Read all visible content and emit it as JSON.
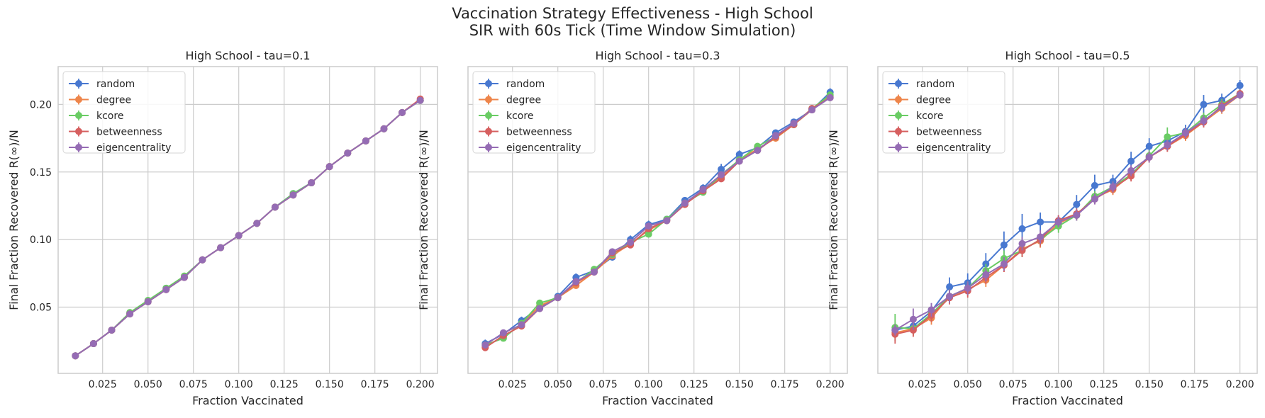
{
  "figure": {
    "title_line1": "Vaccination Strategy Effectiveness - High School",
    "title_line2": "SIR with 60s Tick (Time Window Simulation)"
  },
  "colors": {
    "random": "#4878d0",
    "degree": "#ee854a",
    "kcore": "#6acc64",
    "betweenness": "#d65f5f",
    "eigencentrality": "#956cb4"
  },
  "chart_data": [
    {
      "type": "line",
      "title": "High School - tau=0.1",
      "xlabel": "Fraction Vaccinated",
      "ylabel": "Final Fraction Recovered R(∞)/N",
      "xlim": [
        0.0005,
        0.2095
      ],
      "ylim": [
        0.001,
        0.228
      ],
      "xticks": [
        "0.025",
        "0.050",
        "0.075",
        "0.100",
        "0.125",
        "0.150",
        "0.175",
        "0.200"
      ],
      "yticks": [
        "0.05",
        "0.10",
        "0.15",
        "0.20"
      ],
      "grid": true,
      "legend_position": "upper-left",
      "x": [
        0.01,
        0.02,
        0.03,
        0.04,
        0.05,
        0.06,
        0.07,
        0.08,
        0.09,
        0.1,
        0.11,
        0.12,
        0.13,
        0.14,
        0.15,
        0.16,
        0.17,
        0.18,
        0.19,
        0.2
      ],
      "series": [
        {
          "name": "random",
          "values": [
            0.014,
            0.023,
            0.033,
            0.045,
            0.054,
            0.064,
            0.072,
            0.085,
            0.094,
            0.103,
            0.112,
            0.124,
            0.134,
            0.142,
            0.154,
            0.164,
            0.173,
            0.182,
            0.194,
            0.203
          ],
          "err": [
            0.001,
            0.001,
            0.001,
            0.001,
            0.001,
            0.001,
            0.001,
            0.001,
            0.001,
            0.001,
            0.001,
            0.001,
            0.001,
            0.001,
            0.001,
            0.001,
            0.001,
            0.001,
            0.001,
            0.001
          ]
        },
        {
          "name": "degree",
          "values": [
            0.014,
            0.023,
            0.033,
            0.045,
            0.054,
            0.063,
            0.072,
            0.085,
            0.094,
            0.103,
            0.112,
            0.124,
            0.133,
            0.142,
            0.154,
            0.164,
            0.173,
            0.182,
            0.194,
            0.203
          ],
          "err": [
            0.001,
            0.001,
            0.001,
            0.001,
            0.001,
            0.001,
            0.001,
            0.001,
            0.001,
            0.001,
            0.001,
            0.001,
            0.001,
            0.001,
            0.001,
            0.001,
            0.001,
            0.001,
            0.001,
            0.001
          ]
        },
        {
          "name": "kcore",
          "values": [
            0.014,
            0.023,
            0.033,
            0.046,
            0.055,
            0.064,
            0.073,
            0.085,
            0.094,
            0.103,
            0.112,
            0.124,
            0.134,
            0.142,
            0.154,
            0.164,
            0.173,
            0.182,
            0.194,
            0.203
          ],
          "err": [
            0.001,
            0.001,
            0.001,
            0.001,
            0.001,
            0.001,
            0.001,
            0.001,
            0.001,
            0.001,
            0.001,
            0.001,
            0.001,
            0.001,
            0.001,
            0.001,
            0.001,
            0.001,
            0.001,
            0.001
          ]
        },
        {
          "name": "betweenness",
          "values": [
            0.014,
            0.023,
            0.033,
            0.045,
            0.054,
            0.063,
            0.072,
            0.085,
            0.094,
            0.103,
            0.112,
            0.124,
            0.133,
            0.142,
            0.154,
            0.164,
            0.173,
            0.182,
            0.194,
            0.204
          ],
          "err": [
            0.001,
            0.001,
            0.001,
            0.001,
            0.001,
            0.001,
            0.001,
            0.001,
            0.001,
            0.001,
            0.001,
            0.001,
            0.001,
            0.001,
            0.001,
            0.001,
            0.001,
            0.001,
            0.001,
            0.001
          ]
        },
        {
          "name": "eigencentrality",
          "values": [
            0.014,
            0.023,
            0.033,
            0.045,
            0.054,
            0.063,
            0.072,
            0.085,
            0.094,
            0.103,
            0.112,
            0.124,
            0.133,
            0.142,
            0.154,
            0.164,
            0.173,
            0.182,
            0.194,
            0.203
          ],
          "err": [
            0.001,
            0.001,
            0.001,
            0.001,
            0.001,
            0.001,
            0.001,
            0.001,
            0.001,
            0.001,
            0.001,
            0.001,
            0.001,
            0.001,
            0.001,
            0.001,
            0.001,
            0.001,
            0.001,
            0.001
          ]
        }
      ]
    },
    {
      "type": "line",
      "title": "High School - tau=0.3",
      "xlabel": "Fraction Vaccinated",
      "ylabel": "Final Fraction Recovered R(∞)/N",
      "xlim": [
        0.0005,
        0.2095
      ],
      "ylim": [
        0.001,
        0.228
      ],
      "xticks": [
        "0.025",
        "0.050",
        "0.075",
        "0.100",
        "0.125",
        "0.150",
        "0.175",
        "0.200"
      ],
      "yticks": [],
      "grid": true,
      "legend_position": "upper-left",
      "x": [
        0.01,
        0.02,
        0.03,
        0.04,
        0.05,
        0.06,
        0.07,
        0.08,
        0.09,
        0.1,
        0.11,
        0.12,
        0.13,
        0.14,
        0.15,
        0.16,
        0.17,
        0.18,
        0.19,
        0.2
      ],
      "series": [
        {
          "name": "random",
          "values": [
            0.023,
            0.03,
            0.04,
            0.05,
            0.058,
            0.072,
            0.077,
            0.087,
            0.1,
            0.111,
            0.115,
            0.129,
            0.138,
            0.152,
            0.163,
            0.168,
            0.179,
            0.187,
            0.196,
            0.209
          ],
          "err": [
            0.003,
            0.003,
            0.003,
            0.002,
            0.002,
            0.003,
            0.002,
            0.002,
            0.003,
            0.003,
            0.002,
            0.002,
            0.003,
            0.004,
            0.003,
            0.002,
            0.002,
            0.002,
            0.002,
            0.003
          ]
        },
        {
          "name": "degree",
          "values": [
            0.021,
            0.028,
            0.037,
            0.051,
            0.057,
            0.066,
            0.076,
            0.088,
            0.097,
            0.107,
            0.114,
            0.126,
            0.137,
            0.146,
            0.159,
            0.167,
            0.175,
            0.185,
            0.196,
            0.206
          ],
          "err": [
            0.002,
            0.002,
            0.002,
            0.002,
            0.001,
            0.002,
            0.001,
            0.002,
            0.002,
            0.002,
            0.001,
            0.002,
            0.002,
            0.002,
            0.002,
            0.001,
            0.002,
            0.002,
            0.002,
            0.002
          ]
        },
        {
          "name": "kcore",
          "values": [
            0.022,
            0.027,
            0.038,
            0.053,
            0.057,
            0.068,
            0.078,
            0.089,
            0.098,
            0.104,
            0.115,
            0.127,
            0.135,
            0.148,
            0.159,
            0.169,
            0.176,
            0.185,
            0.197,
            0.207
          ],
          "err": [
            0.002,
            0.002,
            0.002,
            0.002,
            0.001,
            0.002,
            0.001,
            0.002,
            0.002,
            0.002,
            0.001,
            0.002,
            0.002,
            0.002,
            0.002,
            0.001,
            0.002,
            0.002,
            0.002,
            0.002
          ]
        },
        {
          "name": "betweenness",
          "values": [
            0.02,
            0.029,
            0.036,
            0.049,
            0.057,
            0.068,
            0.076,
            0.09,
            0.096,
            0.108,
            0.114,
            0.126,
            0.136,
            0.145,
            0.158,
            0.166,
            0.176,
            0.185,
            0.197,
            0.205
          ],
          "err": [
            0.002,
            0.002,
            0.002,
            0.002,
            0.001,
            0.002,
            0.001,
            0.002,
            0.002,
            0.002,
            0.001,
            0.002,
            0.002,
            0.002,
            0.002,
            0.001,
            0.002,
            0.002,
            0.002,
            0.002
          ]
        },
        {
          "name": "eigencentrality",
          "values": [
            0.022,
            0.031,
            0.037,
            0.049,
            0.057,
            0.069,
            0.076,
            0.091,
            0.098,
            0.11,
            0.114,
            0.127,
            0.137,
            0.148,
            0.158,
            0.166,
            0.177,
            0.186,
            0.196,
            0.205
          ],
          "err": [
            0.002,
            0.002,
            0.002,
            0.002,
            0.001,
            0.002,
            0.001,
            0.002,
            0.002,
            0.002,
            0.001,
            0.002,
            0.002,
            0.002,
            0.002,
            0.001,
            0.002,
            0.002,
            0.002,
            0.002
          ]
        }
      ]
    },
    {
      "type": "line",
      "title": "High School - tau=0.5",
      "xlabel": "Fraction Vaccinated",
      "ylabel": "Final Fraction Recovered R(∞)/N",
      "xlim": [
        0.0005,
        0.2095
      ],
      "ylim": [
        0.001,
        0.228
      ],
      "xticks": [
        "0.025",
        "0.050",
        "0.075",
        "0.100",
        "0.125",
        "0.150",
        "0.175",
        "0.200"
      ],
      "yticks": [],
      "grid": true,
      "legend_position": "upper-left",
      "x": [
        0.01,
        0.02,
        0.03,
        0.04,
        0.05,
        0.06,
        0.07,
        0.08,
        0.09,
        0.1,
        0.11,
        0.12,
        0.13,
        0.14,
        0.15,
        0.16,
        0.17,
        0.18,
        0.19,
        0.2
      ],
      "series": [
        {
          "name": "random",
          "values": [
            0.033,
            0.036,
            0.047,
            0.065,
            0.068,
            0.082,
            0.096,
            0.108,
            0.113,
            0.113,
            0.126,
            0.14,
            0.143,
            0.158,
            0.169,
            0.173,
            0.18,
            0.2,
            0.203,
            0.214
          ],
          "err": [
            0.005,
            0.006,
            0.006,
            0.007,
            0.007,
            0.008,
            0.01,
            0.011,
            0.007,
            0.005,
            0.007,
            0.008,
            0.005,
            0.007,
            0.006,
            0.005,
            0.005,
            0.007,
            0.005,
            0.004
          ]
        },
        {
          "name": "degree",
          "values": [
            0.031,
            0.034,
            0.042,
            0.058,
            0.063,
            0.07,
            0.081,
            0.093,
            0.099,
            0.112,
            0.118,
            0.131,
            0.137,
            0.148,
            0.161,
            0.169,
            0.177,
            0.187,
            0.197,
            0.207
          ],
          "err": [
            0.004,
            0.005,
            0.005,
            0.005,
            0.005,
            0.005,
            0.005,
            0.005,
            0.005,
            0.004,
            0.004,
            0.004,
            0.004,
            0.004,
            0.004,
            0.004,
            0.004,
            0.004,
            0.004,
            0.003
          ]
        },
        {
          "name": "kcore",
          "values": [
            0.035,
            0.034,
            0.045,
            0.058,
            0.064,
            0.077,
            0.086,
            0.092,
            0.1,
            0.11,
            0.118,
            0.132,
            0.139,
            0.148,
            0.162,
            0.176,
            0.179,
            0.19,
            0.2,
            0.208
          ],
          "err": [
            0.01,
            0.005,
            0.005,
            0.005,
            0.005,
            0.005,
            0.006,
            0.005,
            0.005,
            0.005,
            0.004,
            0.004,
            0.004,
            0.004,
            0.004,
            0.007,
            0.004,
            0.004,
            0.004,
            0.003
          ]
        },
        {
          "name": "betweenness",
          "values": [
            0.03,
            0.033,
            0.044,
            0.057,
            0.062,
            0.072,
            0.081,
            0.092,
            0.1,
            0.114,
            0.119,
            0.13,
            0.138,
            0.147,
            0.161,
            0.169,
            0.178,
            0.187,
            0.199,
            0.208
          ],
          "err": [
            0.007,
            0.005,
            0.005,
            0.005,
            0.005,
            0.005,
            0.005,
            0.005,
            0.005,
            0.004,
            0.004,
            0.004,
            0.004,
            0.004,
            0.004,
            0.004,
            0.004,
            0.004,
            0.004,
            0.003
          ]
        },
        {
          "name": "eigencentrality",
          "values": [
            0.033,
            0.041,
            0.048,
            0.058,
            0.064,
            0.074,
            0.082,
            0.097,
            0.102,
            0.113,
            0.118,
            0.13,
            0.139,
            0.151,
            0.161,
            0.17,
            0.179,
            0.188,
            0.198,
            0.207
          ],
          "err": [
            0.004,
            0.008,
            0.005,
            0.005,
            0.005,
            0.005,
            0.005,
            0.005,
            0.005,
            0.004,
            0.004,
            0.004,
            0.004,
            0.004,
            0.004,
            0.004,
            0.004,
            0.004,
            0.004,
            0.003
          ]
        }
      ]
    }
  ]
}
